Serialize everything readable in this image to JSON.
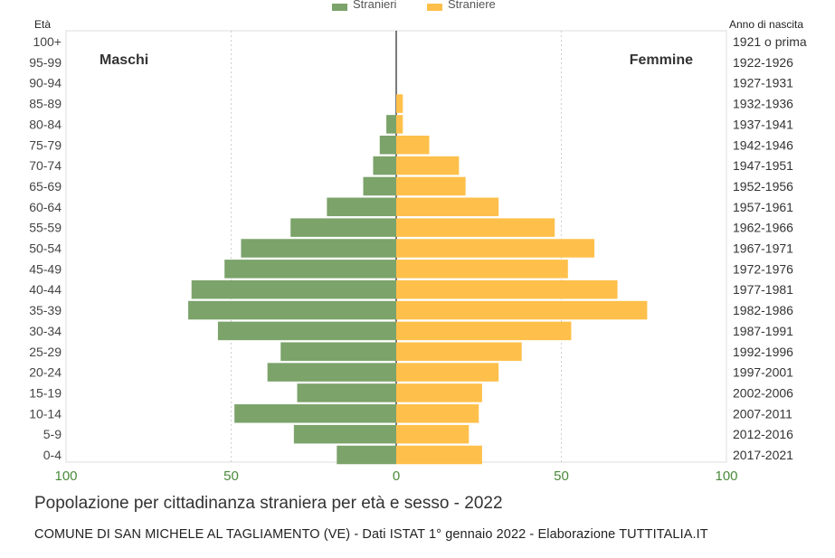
{
  "chart_data": {
    "type": "bar",
    "orientation": "horizontal-pyramid",
    "title": "Popolazione per cittadinanza straniera per età e sesso - 2022",
    "subtitle": "COMUNE DI SAN MICHELE AL TAGLIAMENTO (VE) - Dati ISTAT 1° gennaio 2022 - Elaborazione TUTTITALIA.IT",
    "left_axis_label": "Età",
    "right_axis_label": "Anno di nascita",
    "side_labels": {
      "left": "Maschi",
      "right": "Femmine"
    },
    "legend": {
      "position": "top-center",
      "entries": [
        "Stranieri",
        "Straniere"
      ]
    },
    "categories": [
      "100+",
      "95-99",
      "90-94",
      "85-89",
      "80-84",
      "75-79",
      "70-74",
      "65-69",
      "60-64",
      "55-59",
      "50-54",
      "45-49",
      "40-44",
      "35-39",
      "30-34",
      "25-29",
      "20-24",
      "15-19",
      "10-14",
      "5-9",
      "0-4"
    ],
    "birth_years": [
      "1921 o prima",
      "1922-1926",
      "1927-1931",
      "1932-1936",
      "1937-1941",
      "1942-1946",
      "1947-1951",
      "1952-1956",
      "1957-1961",
      "1962-1966",
      "1967-1971",
      "1972-1976",
      "1977-1981",
      "1982-1986",
      "1987-1991",
      "1992-1996",
      "1997-2001",
      "2002-2006",
      "2007-2011",
      "2012-2016",
      "2017-2021"
    ],
    "series": [
      {
        "name": "Maschi",
        "color": "#7ba36a",
        "values": [
          0,
          0,
          0,
          0,
          3,
          5,
          7,
          10,
          21,
          32,
          47,
          52,
          62,
          63,
          54,
          35,
          39,
          30,
          49,
          31,
          18
        ]
      },
      {
        "name": "Femmine",
        "color": "#fec04b",
        "values": [
          0,
          0,
          0,
          2,
          2,
          10,
          19,
          21,
          31,
          48,
          60,
          52,
          67,
          76,
          53,
          38,
          31,
          26,
          25,
          22,
          26
        ]
      }
    ],
    "xlim": [
      -100,
      100
    ],
    "x_ticks": [
      "100",
      "50",
      "0",
      "50",
      "100"
    ],
    "grid": true
  }
}
